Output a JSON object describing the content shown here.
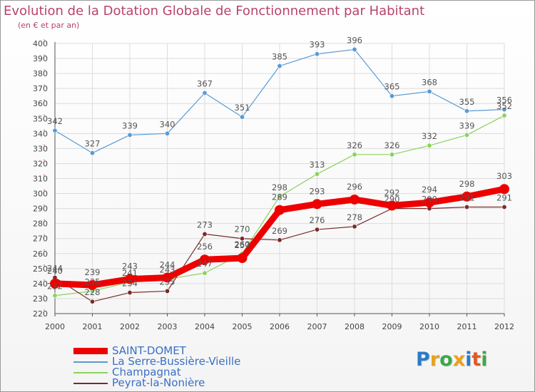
{
  "header": {
    "title": "Evolution de la Dotation Globale de Fonctionnement par Habitant",
    "subtitle": "(en € et par an)"
  },
  "logo": {
    "text": "Proxiti",
    "letters": [
      {
        "ch": "P",
        "color": "#2a7bc8"
      },
      {
        "ch": "r",
        "color": "#e8a21c"
      },
      {
        "ch": "o",
        "color": "#3aa84a"
      },
      {
        "ch": "x",
        "color": "#e8a21c"
      },
      {
        "ch": "i",
        "color": "#2a7bc8"
      },
      {
        "ch": "t",
        "color": "#e05a2a"
      },
      {
        "ch": "i",
        "color": "#3aa84a"
      }
    ]
  },
  "colors": {
    "grid": "#dcdcdc",
    "axis": "#555555",
    "tick_text": "#444444",
    "label_text": "#555555",
    "legend_text": "#3a6fc4",
    "point_stroke": "#ffffff"
  },
  "chart_data": {
    "type": "line",
    "title": "Evolution de la Dotation Globale de Fonctionnement par Habitant",
    "subtitle": "(en € et par an)",
    "categories": [
      "2000",
      "2001",
      "2002",
      "2003",
      "2004",
      "2005",
      "2006",
      "2007",
      "2008",
      "2009",
      "2010",
      "2011",
      "2012"
    ],
    "ylim": [
      220,
      400
    ],
    "yticks": [
      220,
      230,
      240,
      250,
      260,
      270,
      280,
      290,
      300,
      310,
      320,
      330,
      340,
      350,
      360,
      370,
      380,
      390,
      400
    ],
    "grid": true,
    "legend_position": "bottom-left",
    "series": [
      {
        "name": "SAINT-DOMET",
        "color": "#ee0000",
        "width": 9,
        "marker": 7,
        "values": [
          240,
          239,
          243,
          244,
          256,
          257,
          289,
          293,
          296,
          292,
          294,
          298,
          303
        ],
        "labels": [
          "240",
          "239",
          "243",
          "244",
          "256",
          "257",
          "289",
          "293",
          "296",
          "292",
          "294",
          "298",
          "303"
        ]
      },
      {
        "name": "La Serre-Bussière-Vieille",
        "color": "#5a9ad2",
        "width": 1.2,
        "marker": 3.2,
        "values": [
          342,
          327,
          339,
          340,
          367,
          351,
          385,
          393,
          396,
          365,
          368,
          355,
          356
        ],
        "labels": [
          "342",
          "327",
          "339",
          "340",
          "367",
          "351",
          "385",
          "393",
          "396",
          "365",
          "368",
          "355",
          "356"
        ]
      },
      {
        "name": "Champagnat",
        "color": "#8bd35a",
        "width": 1.2,
        "marker": 3.2,
        "values": [
          232,
          235,
          241,
          243,
          247,
          260,
          298,
          313,
          326,
          326,
          332,
          339,
          352
        ],
        "labels": [
          "232",
          "235",
          "241",
          "243",
          "247",
          "260",
          "298",
          "313",
          "326",
          "326",
          "332",
          "339",
          "352"
        ]
      },
      {
        "name": "Peyrat-la-Nonière",
        "color": "#7a2a2a",
        "width": 1.2,
        "marker": 3.2,
        "values": [
          244,
          228,
          234,
          235,
          273,
          270,
          269,
          276,
          278,
          290,
          290,
          291,
          291
        ],
        "labels": [
          "244",
          "228",
          "234",
          "235",
          "273",
          "270",
          "269",
          "276",
          "278",
          "290",
          "290",
          "291",
          "291"
        ]
      }
    ]
  }
}
